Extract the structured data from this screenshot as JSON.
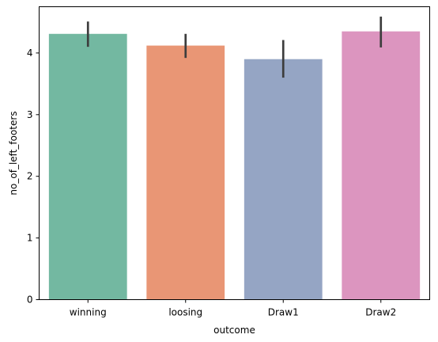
{
  "chart_data": {
    "type": "bar",
    "title": "",
    "xlabel": "outcome",
    "ylabel": "no_of_left_footers",
    "categories": [
      "winning",
      "loosing",
      "Draw1",
      "Draw2"
    ],
    "values": [
      4.31,
      4.12,
      3.9,
      4.35
    ],
    "error_bars": [
      [
        4.1,
        4.51
      ],
      [
        3.92,
        4.31
      ],
      [
        3.6,
        4.21
      ],
      [
        4.09,
        4.59
      ]
    ],
    "ylim": [
      0,
      4.75
    ],
    "yticks": [
      0,
      1,
      2,
      3,
      4
    ],
    "colors": [
      "#73b8a1",
      "#e99675",
      "#95a5c4",
      "#dc95bf"
    ],
    "errorbar_color": "#3d3d3d",
    "grid": false,
    "legend": "none"
  }
}
